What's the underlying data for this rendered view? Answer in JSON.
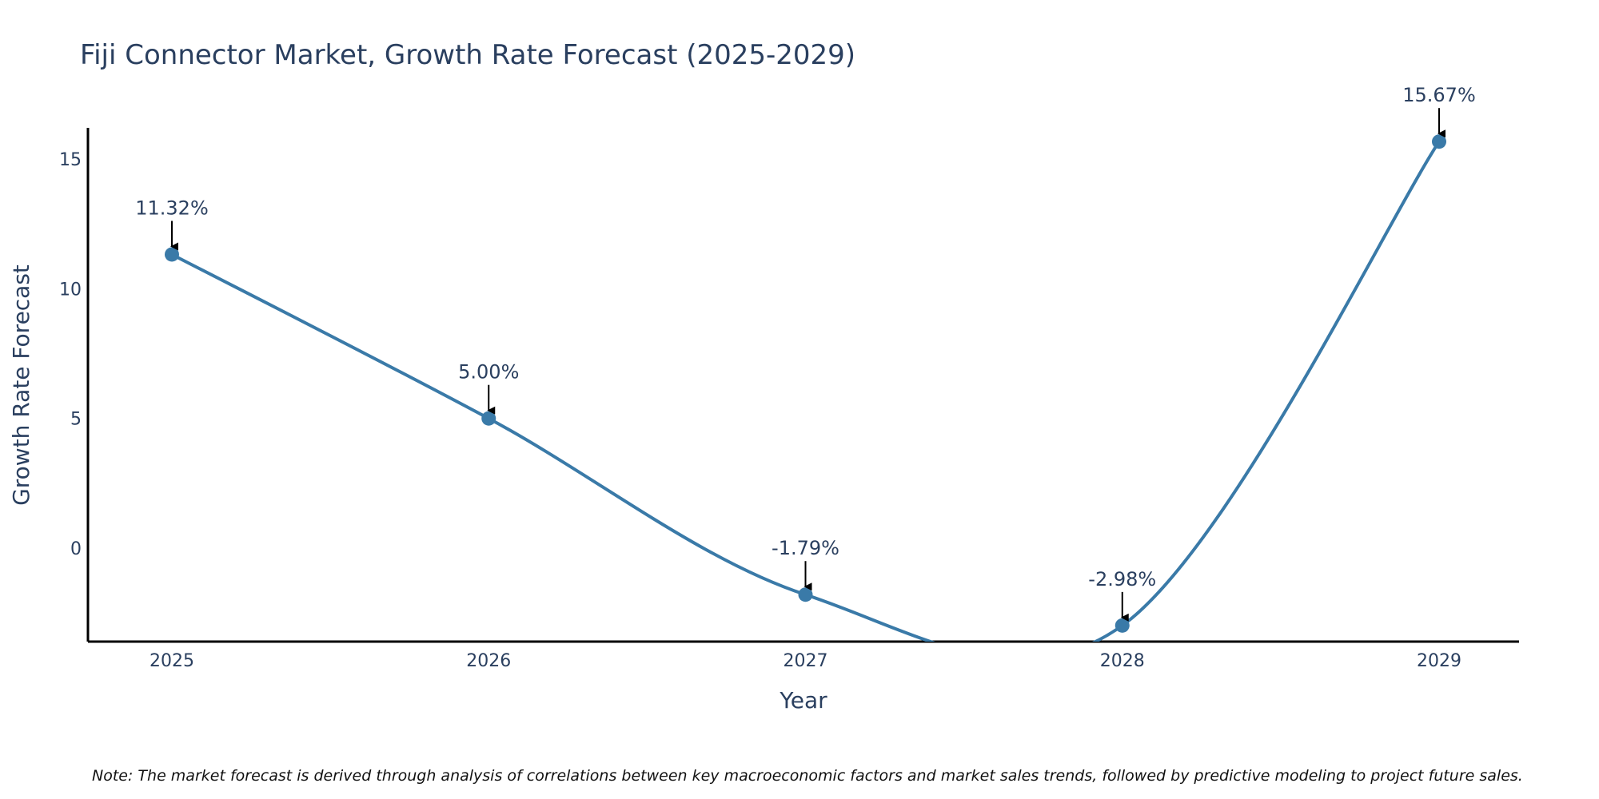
{
  "chart_data": {
    "type": "line",
    "title": "Fiji Connector Market, Growth Rate Forecast (2025-2029)",
    "xlabel": "Year",
    "ylabel": "Growth Rate Forecast",
    "categories": [
      "2025",
      "2026",
      "2027",
      "2028",
      "2029"
    ],
    "series": [
      {
        "name": "Growth Rate Forecast",
        "values": [
          11.32,
          5.0,
          -1.79,
          -2.98,
          15.67
        ],
        "labels": [
          "11.32%",
          "5.00%",
          "-1.79%",
          "-2.98%",
          "15.67%"
        ]
      }
    ],
    "y_ticks": [
      0,
      5,
      10,
      15
    ],
    "y_tick_labels": [
      "0",
      "5",
      "10",
      "15"
    ],
    "ylim": [
      -3.6,
      16.2
    ],
    "line_color": "#3a7aa8",
    "marker_color": "#3a7aa8",
    "arrow_color": "#000000",
    "note": "Note: The market forecast is derived through analysis of correlations between key macroeconomic factors and market sales trends, followed by predictive modeling to project future sales."
  }
}
